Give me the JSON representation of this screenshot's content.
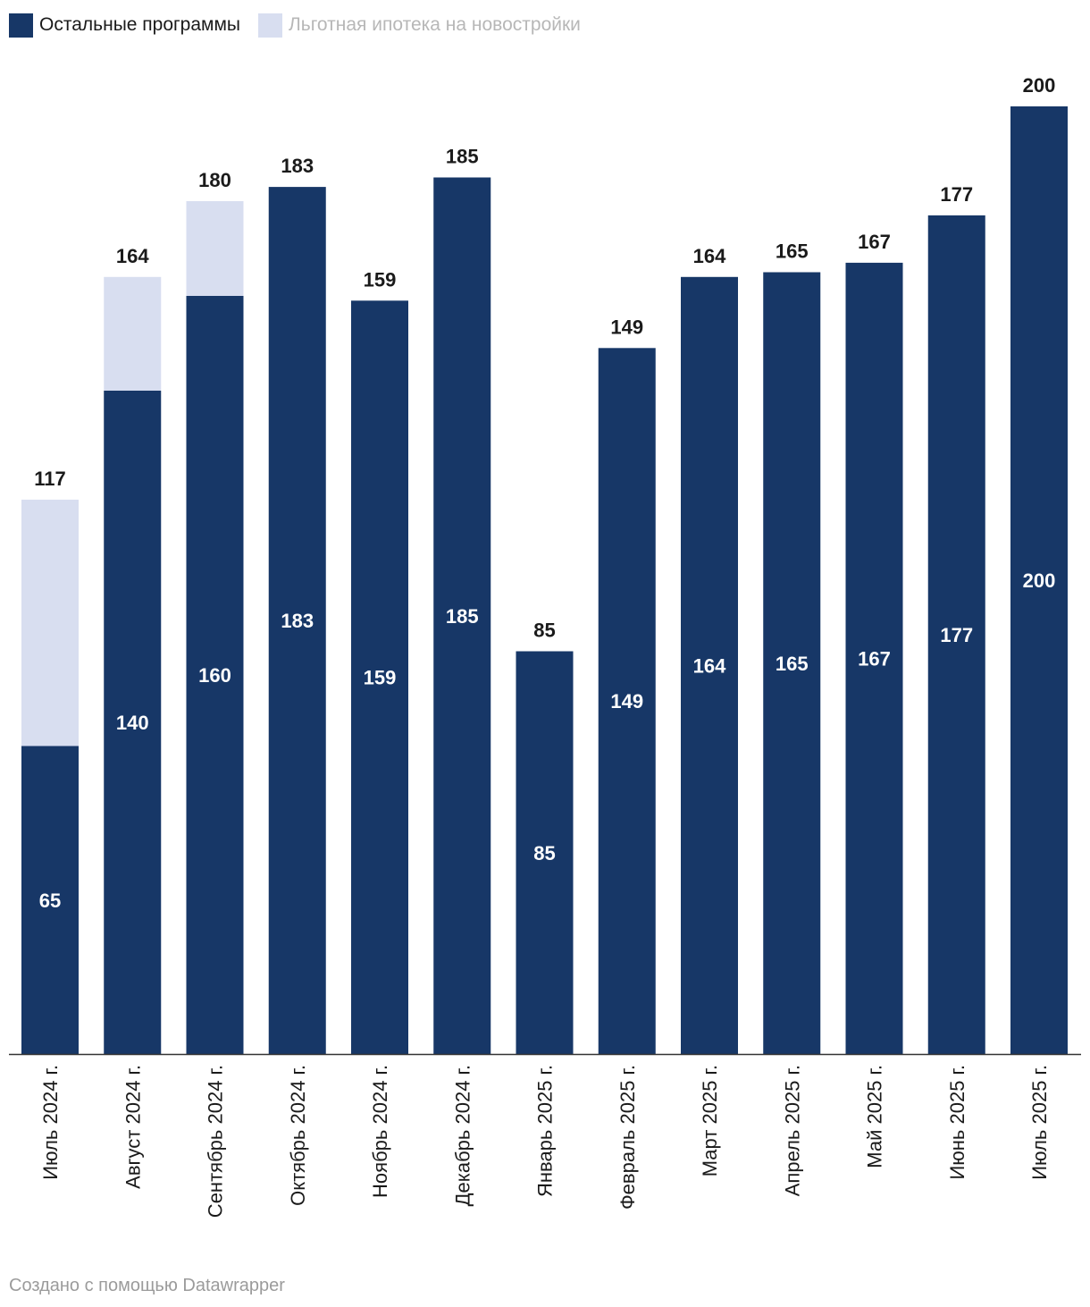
{
  "legend": {
    "items": [
      {
        "label": "Остальные программы",
        "color": "#173767",
        "text_color": "#1a1a1a"
      },
      {
        "label": "Льготная ипотека на новостройки",
        "color": "#d8def0",
        "text_color": "#b7b7b7"
      }
    ]
  },
  "chart_data": {
    "type": "bar",
    "stacked": true,
    "categories": [
      "Июль 2024 г.",
      "Август 2024 г.",
      "Сентябрь 2024 г.",
      "Октябрь 2024 г.",
      "Ноябрь 2024 г.",
      "Декабрь 2024 г.",
      "Январь 2025 г.",
      "Февраль 2025 г.",
      "Март 2025 г.",
      "Апрель 2025 г.",
      "Май 2025 г.",
      "Июнь 2025 г.",
      "Июль 2025 г."
    ],
    "series": [
      {
        "name": "Остальные программы",
        "color": "#173767",
        "values": [
          65,
          140,
          160,
          183,
          159,
          185,
          85,
          149,
          164,
          165,
          167,
          177,
          200
        ]
      },
      {
        "name": "Льготная ипотека на новостройки",
        "color": "#d8def0",
        "values": [
          52,
          24,
          20,
          0,
          0,
          0,
          0,
          0,
          0,
          0,
          0,
          0,
          0
        ]
      }
    ],
    "totals": [
      117,
      164,
      180,
      183,
      159,
      185,
      85,
      149,
      164,
      165,
      167,
      177,
      200
    ],
    "ylim": [
      0,
      200
    ],
    "grid": false,
    "legend_position": "top-left",
    "tick_label_rotation": "vertical"
  },
  "footer": {
    "credit": "Создано с помощью Datawrapper"
  }
}
